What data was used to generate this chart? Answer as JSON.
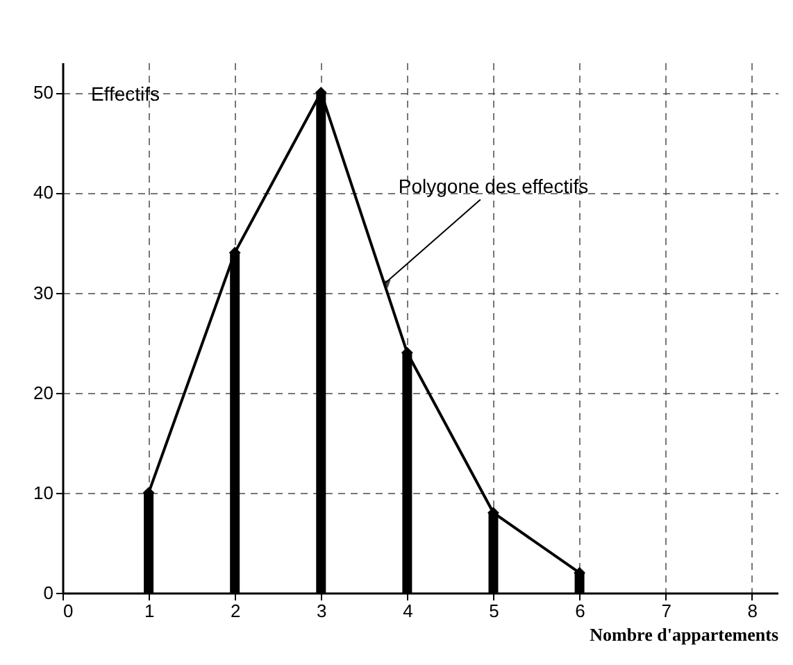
{
  "chart_data": {
    "type": "bar",
    "xlabel": "Nombre d'appartements",
    "ylabel": "Effectifs",
    "x": [
      1,
      2,
      3,
      4,
      5,
      6
    ],
    "series": [
      {
        "color": "#000000",
        "values": [
          10,
          34,
          50,
          24,
          8,
          2
        ]
      },
      {
        "type": "line",
        "color": "#000000",
        "values": [
          10,
          34,
          50,
          24,
          8,
          2
        ]
      }
    ],
    "xlim": [
      0,
      8.3
    ],
    "xticks": [
      0,
      1,
      2,
      3,
      4,
      5,
      6,
      7,
      8
    ],
    "ylim": [
      0,
      53
    ],
    "yticks": [
      0,
      10,
      20,
      30,
      40,
      50
    ],
    "grid": true,
    "marker": "diamond",
    "line_style": "solid",
    "annotations": [
      {
        "text": "Polygone des effectifs",
        "x": 3.75,
        "y": 31
      }
    ]
  }
}
